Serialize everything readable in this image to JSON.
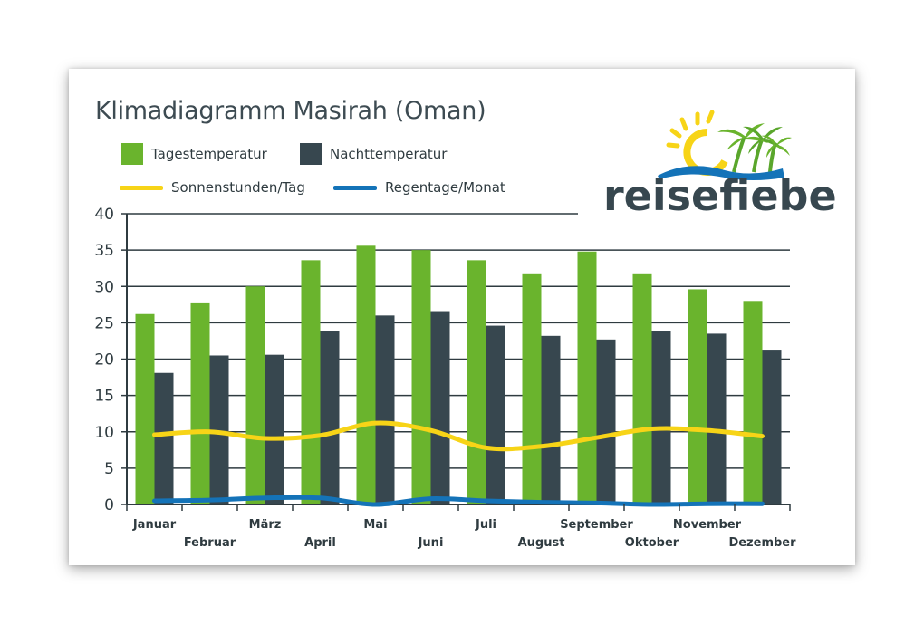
{
  "title": "Klimadiagramm Masirah (Oman)",
  "logo": {
    "text": "reisefieber"
  },
  "colors": {
    "day": "#6ab42d",
    "night": "#37474f",
    "sun": "#f7d417",
    "rain": "#1473b8",
    "grid": "#2f3b40",
    "text": "#2f3b40"
  },
  "legend": [
    {
      "label": "Tagestemperatur",
      "kind": "box",
      "color": "#6ab42d"
    },
    {
      "label": "Nachttemperatur",
      "kind": "box",
      "color": "#37474f"
    },
    {
      "label": "Sonnenstunden/Tag",
      "kind": "line",
      "color": "#f7d417"
    },
    {
      "label": "Regentage/Monat",
      "kind": "line",
      "color": "#1473b8"
    }
  ],
  "chart_data": {
    "type": "bar",
    "title": "Klimadiagramm Masirah (Oman)",
    "categories": [
      "Januar",
      "Februar",
      "März",
      "April",
      "Mai",
      "Juni",
      "Juli",
      "August",
      "September",
      "Oktober",
      "November",
      "Dezember"
    ],
    "series": [
      {
        "name": "Tagestemperatur",
        "type": "bar",
        "values": [
          26.2,
          27.8,
          30.0,
          33.6,
          35.6,
          35.0,
          33.6,
          31.8,
          34.8,
          31.8,
          29.6,
          28.0
        ]
      },
      {
        "name": "Nachttemperatur",
        "type": "bar",
        "values": [
          18.1,
          20.5,
          20.6,
          23.9,
          26.0,
          26.6,
          24.6,
          23.2,
          22.7,
          23.9,
          23.5,
          21.3
        ]
      },
      {
        "name": "Sonnenstunden/Tag",
        "type": "line",
        "values": [
          9.6,
          10.0,
          9.1,
          9.5,
          11.2,
          10.2,
          7.8,
          8.0,
          9.2,
          10.4,
          10.2,
          9.4
        ]
      },
      {
        "name": "Regentage/Monat",
        "type": "line",
        "values": [
          0.5,
          0.6,
          0.9,
          0.9,
          0.0,
          0.8,
          0.5,
          0.3,
          0.2,
          0.0,
          0.1,
          0.1
        ]
      }
    ],
    "ylim": [
      0,
      40
    ],
    "yticks": [
      0,
      5,
      10,
      15,
      20,
      25,
      30,
      35,
      40
    ],
    "xlabel": "",
    "ylabel": "",
    "grid": true,
    "legend_position": "top-left"
  }
}
